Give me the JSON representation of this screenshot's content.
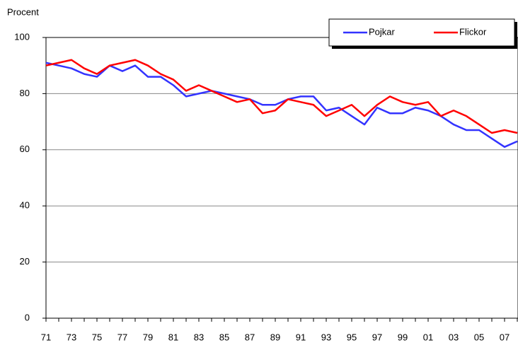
{
  "chart_data": {
    "type": "line",
    "y_label": "Procent",
    "categories": [
      "71",
      null,
      "73",
      null,
      "75",
      null,
      "77",
      null,
      "79",
      null,
      "81",
      null,
      "83",
      null,
      "85",
      null,
      "87",
      null,
      "89",
      null,
      "91",
      null,
      "93",
      null,
      "95",
      null,
      "97",
      null,
      "99",
      null,
      "01",
      null,
      "03",
      null,
      "05",
      null,
      "07",
      null
    ],
    "series": [
      {
        "name": "Pojkar",
        "color": "#3333ff",
        "values": [
          91,
          90,
          89,
          87,
          86,
          90,
          88,
          90,
          86,
          86,
          83,
          79,
          80,
          81,
          80,
          79,
          78,
          76,
          76,
          78,
          79,
          79,
          74,
          75,
          72,
          69,
          75,
          73,
          73,
          75,
          74,
          72,
          69,
          67,
          67,
          64,
          61,
          63
        ]
      },
      {
        "name": "Flickor",
        "color": "#ff0000",
        "values": [
          90,
          91,
          92,
          89,
          87,
          90,
          91,
          92,
          90,
          87,
          85,
          81,
          83,
          81,
          79,
          77,
          78,
          73,
          74,
          78,
          77,
          76,
          72,
          74,
          76,
          72,
          76,
          79,
          77,
          76,
          77,
          72,
          74,
          72,
          69,
          66,
          67,
          66
        ]
      }
    ],
    "ylim": [
      0,
      100
    ],
    "yticks": [
      0,
      20,
      40,
      60,
      80,
      100
    ],
    "grid": true,
    "legend": "top-right"
  }
}
